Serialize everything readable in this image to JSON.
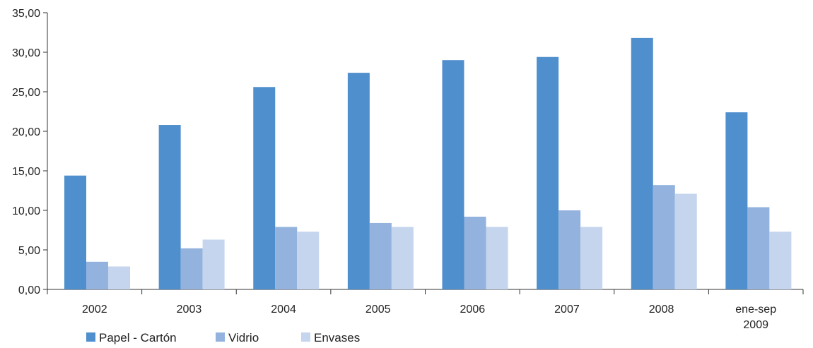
{
  "chart_data": {
    "type": "bar",
    "categories": [
      "2002",
      "2003",
      "2004",
      "2005",
      "2006",
      "2007",
      "2008",
      [
        "ene-sep",
        "2009"
      ]
    ],
    "series": [
      {
        "name": "Papel - Cartón",
        "color": "#4f8fcd",
        "values": [
          14.4,
          20.8,
          25.6,
          27.4,
          29.0,
          29.4,
          31.8,
          22.4
        ]
      },
      {
        "name": "Vidrio",
        "color": "#93b3de",
        "values": [
          3.5,
          5.2,
          7.9,
          8.4,
          9.2,
          10.0,
          13.2,
          10.4
        ]
      },
      {
        "name": "Envases",
        "color": "#c5d5ee",
        "values": [
          2.9,
          6.3,
          7.3,
          7.9,
          7.9,
          7.9,
          12.1,
          7.3
        ]
      }
    ],
    "y_ticks": [
      "0,00",
      "5,00",
      "10,00",
      "15,00",
      "20,00",
      "25,00",
      "30,00",
      "35,00"
    ],
    "ylim": [
      0,
      35
    ],
    "grid": false,
    "legend_position": "bottom-left",
    "title": "",
    "xlabel": "",
    "ylabel": ""
  }
}
